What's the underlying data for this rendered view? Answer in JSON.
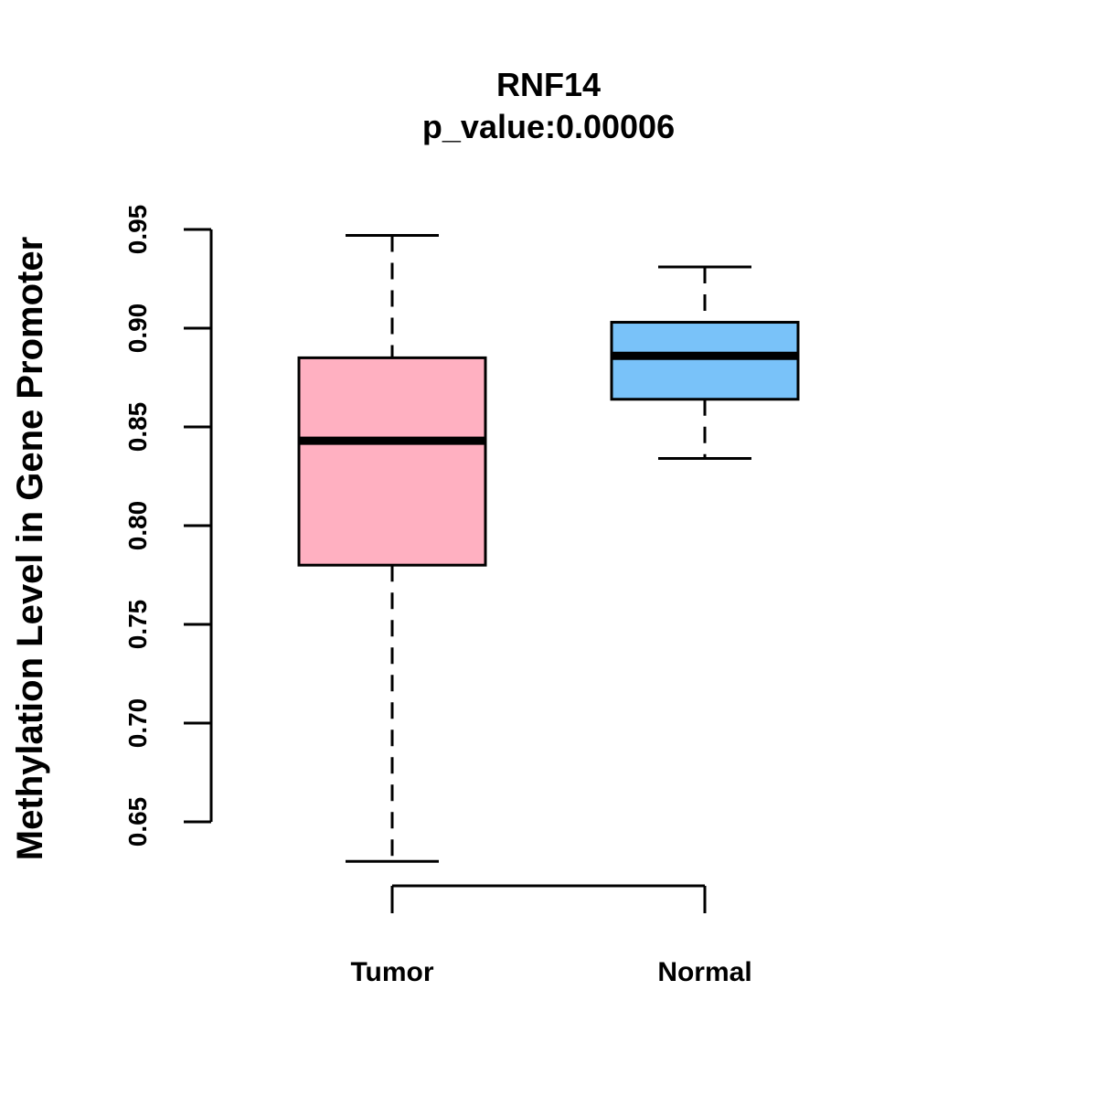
{
  "chart_data": {
    "type": "boxplot",
    "title": "RNF14",
    "subtitle": "p_value:0.00006",
    "xlabel": "",
    "ylabel": "Methylation Level in Gene Promoter",
    "ylim": [
      0.65,
      0.95
    ],
    "yticks": [
      "0.65",
      "0.70",
      "0.75",
      "0.80",
      "0.85",
      "0.90",
      "0.95"
    ],
    "grid": false,
    "legend": "none",
    "categories": [
      "Tumor",
      "Normal"
    ],
    "boxes": [
      {
        "name": "Tumor",
        "whisker_low": 0.63,
        "q1": 0.78,
        "median": 0.843,
        "q3": 0.885,
        "whisker_high": 0.947,
        "color": "#FFB0C1"
      },
      {
        "name": "Normal",
        "whisker_low": 0.834,
        "q1": 0.864,
        "median": 0.886,
        "q3": 0.903,
        "whisker_high": 0.931,
        "color": "#79C2F9"
      }
    ]
  }
}
